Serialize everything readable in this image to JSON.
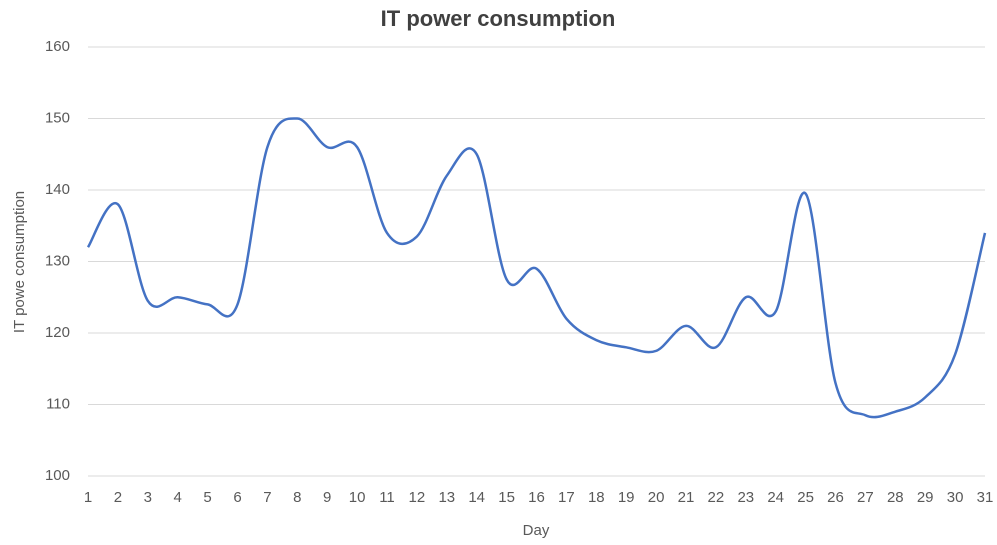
{
  "chart_data": {
    "type": "line",
    "title": "IT power consumption",
    "x_label": "Day",
    "y_label": "IT powe consumption",
    "categories": [
      "1",
      "2",
      "3",
      "4",
      "5",
      "6",
      "7",
      "8",
      "9",
      "10",
      "11",
      "12",
      "13",
      "14",
      "15",
      "16",
      "17",
      "18",
      "19",
      "20",
      "21",
      "22",
      "23",
      "24",
      "25",
      "26",
      "27",
      "28",
      "29",
      "30",
      "31"
    ],
    "series": [
      {
        "name": "IT power consumption",
        "color": "#4472c4",
        "values": [
          132,
          138,
          124.5,
          125,
          124,
          124,
          146,
          150,
          146,
          146,
          134,
          133.5,
          142,
          145,
          127.5,
          129,
          122,
          119,
          118,
          117.5,
          121,
          118,
          125,
          123,
          139.5,
          113,
          108.5,
          109,
          111,
          117,
          134
        ]
      }
    ],
    "ylim": [
      100,
      160
    ],
    "yticks": [
      100,
      110,
      120,
      130,
      140,
      150,
      160
    ],
    "grid": true,
    "smooth": true
  }
}
